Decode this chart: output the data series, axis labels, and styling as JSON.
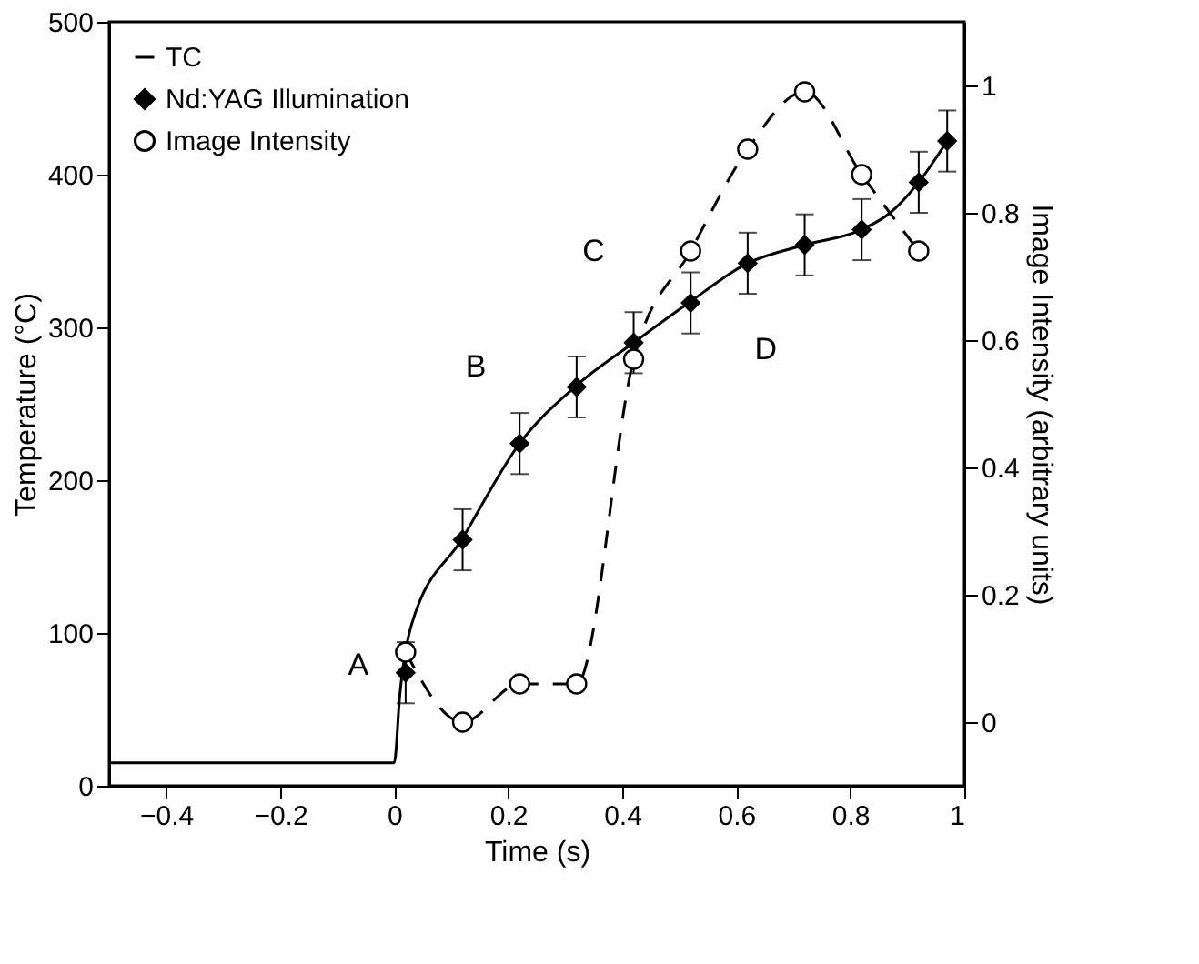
{
  "chart_data": {
    "type": "line",
    "xlabel": "Time (s)",
    "ylabel": "Temperature (°C)",
    "y2label": "Image Intensity (arbitrary units)",
    "xlim": [
      -0.5,
      1
    ],
    "xticks": [
      -0.4,
      -0.2,
      0,
      0.2,
      0.4,
      0.6,
      0.8,
      1
    ],
    "ylim": [
      0,
      500
    ],
    "yticks": [
      0,
      100,
      200,
      300,
      400,
      500
    ],
    "y2lim": [
      -0.1,
      1.1
    ],
    "y2ticks": [
      0,
      0.2,
      0.4,
      0.6,
      0.8,
      1
    ],
    "grid": false,
    "legend": "top left",
    "series": [
      {
        "name": "TC",
        "type": "line",
        "color": "#000000",
        "line_style": "solid",
        "marker": "none",
        "x": [
          -0.5,
          0,
          0.01,
          0.03,
          0.12,
          0.22,
          0.32,
          0.42,
          0.52,
          0.62,
          0.72,
          0.82,
          0.87,
          0.92,
          0.97
        ],
        "values": [
          15,
          15,
          60,
          105,
          162,
          224,
          262,
          290,
          317,
          342,
          354,
          364,
          375,
          395,
          422
        ]
      },
      {
        "name": "Nd:YAG Illumination",
        "type": "scatter",
        "color": "#000000",
        "marker": "diamond",
        "x": [
          0.02,
          0.12,
          0.22,
          0.32,
          0.42,
          0.52,
          0.62,
          0.72,
          0.82,
          0.92,
          0.97
        ],
        "values": [
          74,
          161,
          224,
          261,
          290,
          316,
          342,
          354,
          364,
          395,
          422
        ],
        "errors": [
          20,
          20,
          20,
          20,
          20,
          20,
          20,
          20,
          20,
          20,
          20
        ]
      },
      {
        "name": "Image Intensity",
        "type": "line",
        "axis": "y2",
        "color": "#000000",
        "line_style": "dashed",
        "marker": "circle",
        "x": [
          0.02,
          0.12,
          0.22,
          0.32,
          0.42,
          0.52,
          0.62,
          0.72,
          0.82,
          0.92
        ],
        "values": [
          0.11,
          0.0,
          0.06,
          0.06,
          0.57,
          0.74,
          0.9,
          0.99,
          0.86,
          0.74
        ]
      }
    ],
    "annotations": [
      {
        "text": "A",
        "x": 0.02,
        "y": 74
      },
      {
        "text": "B",
        "x": 0.22,
        "y": 224
      },
      {
        "text": "C",
        "x": 0.42,
        "y": 290
      },
      {
        "text": "D",
        "x": 0.62,
        "y": 342
      }
    ]
  }
}
